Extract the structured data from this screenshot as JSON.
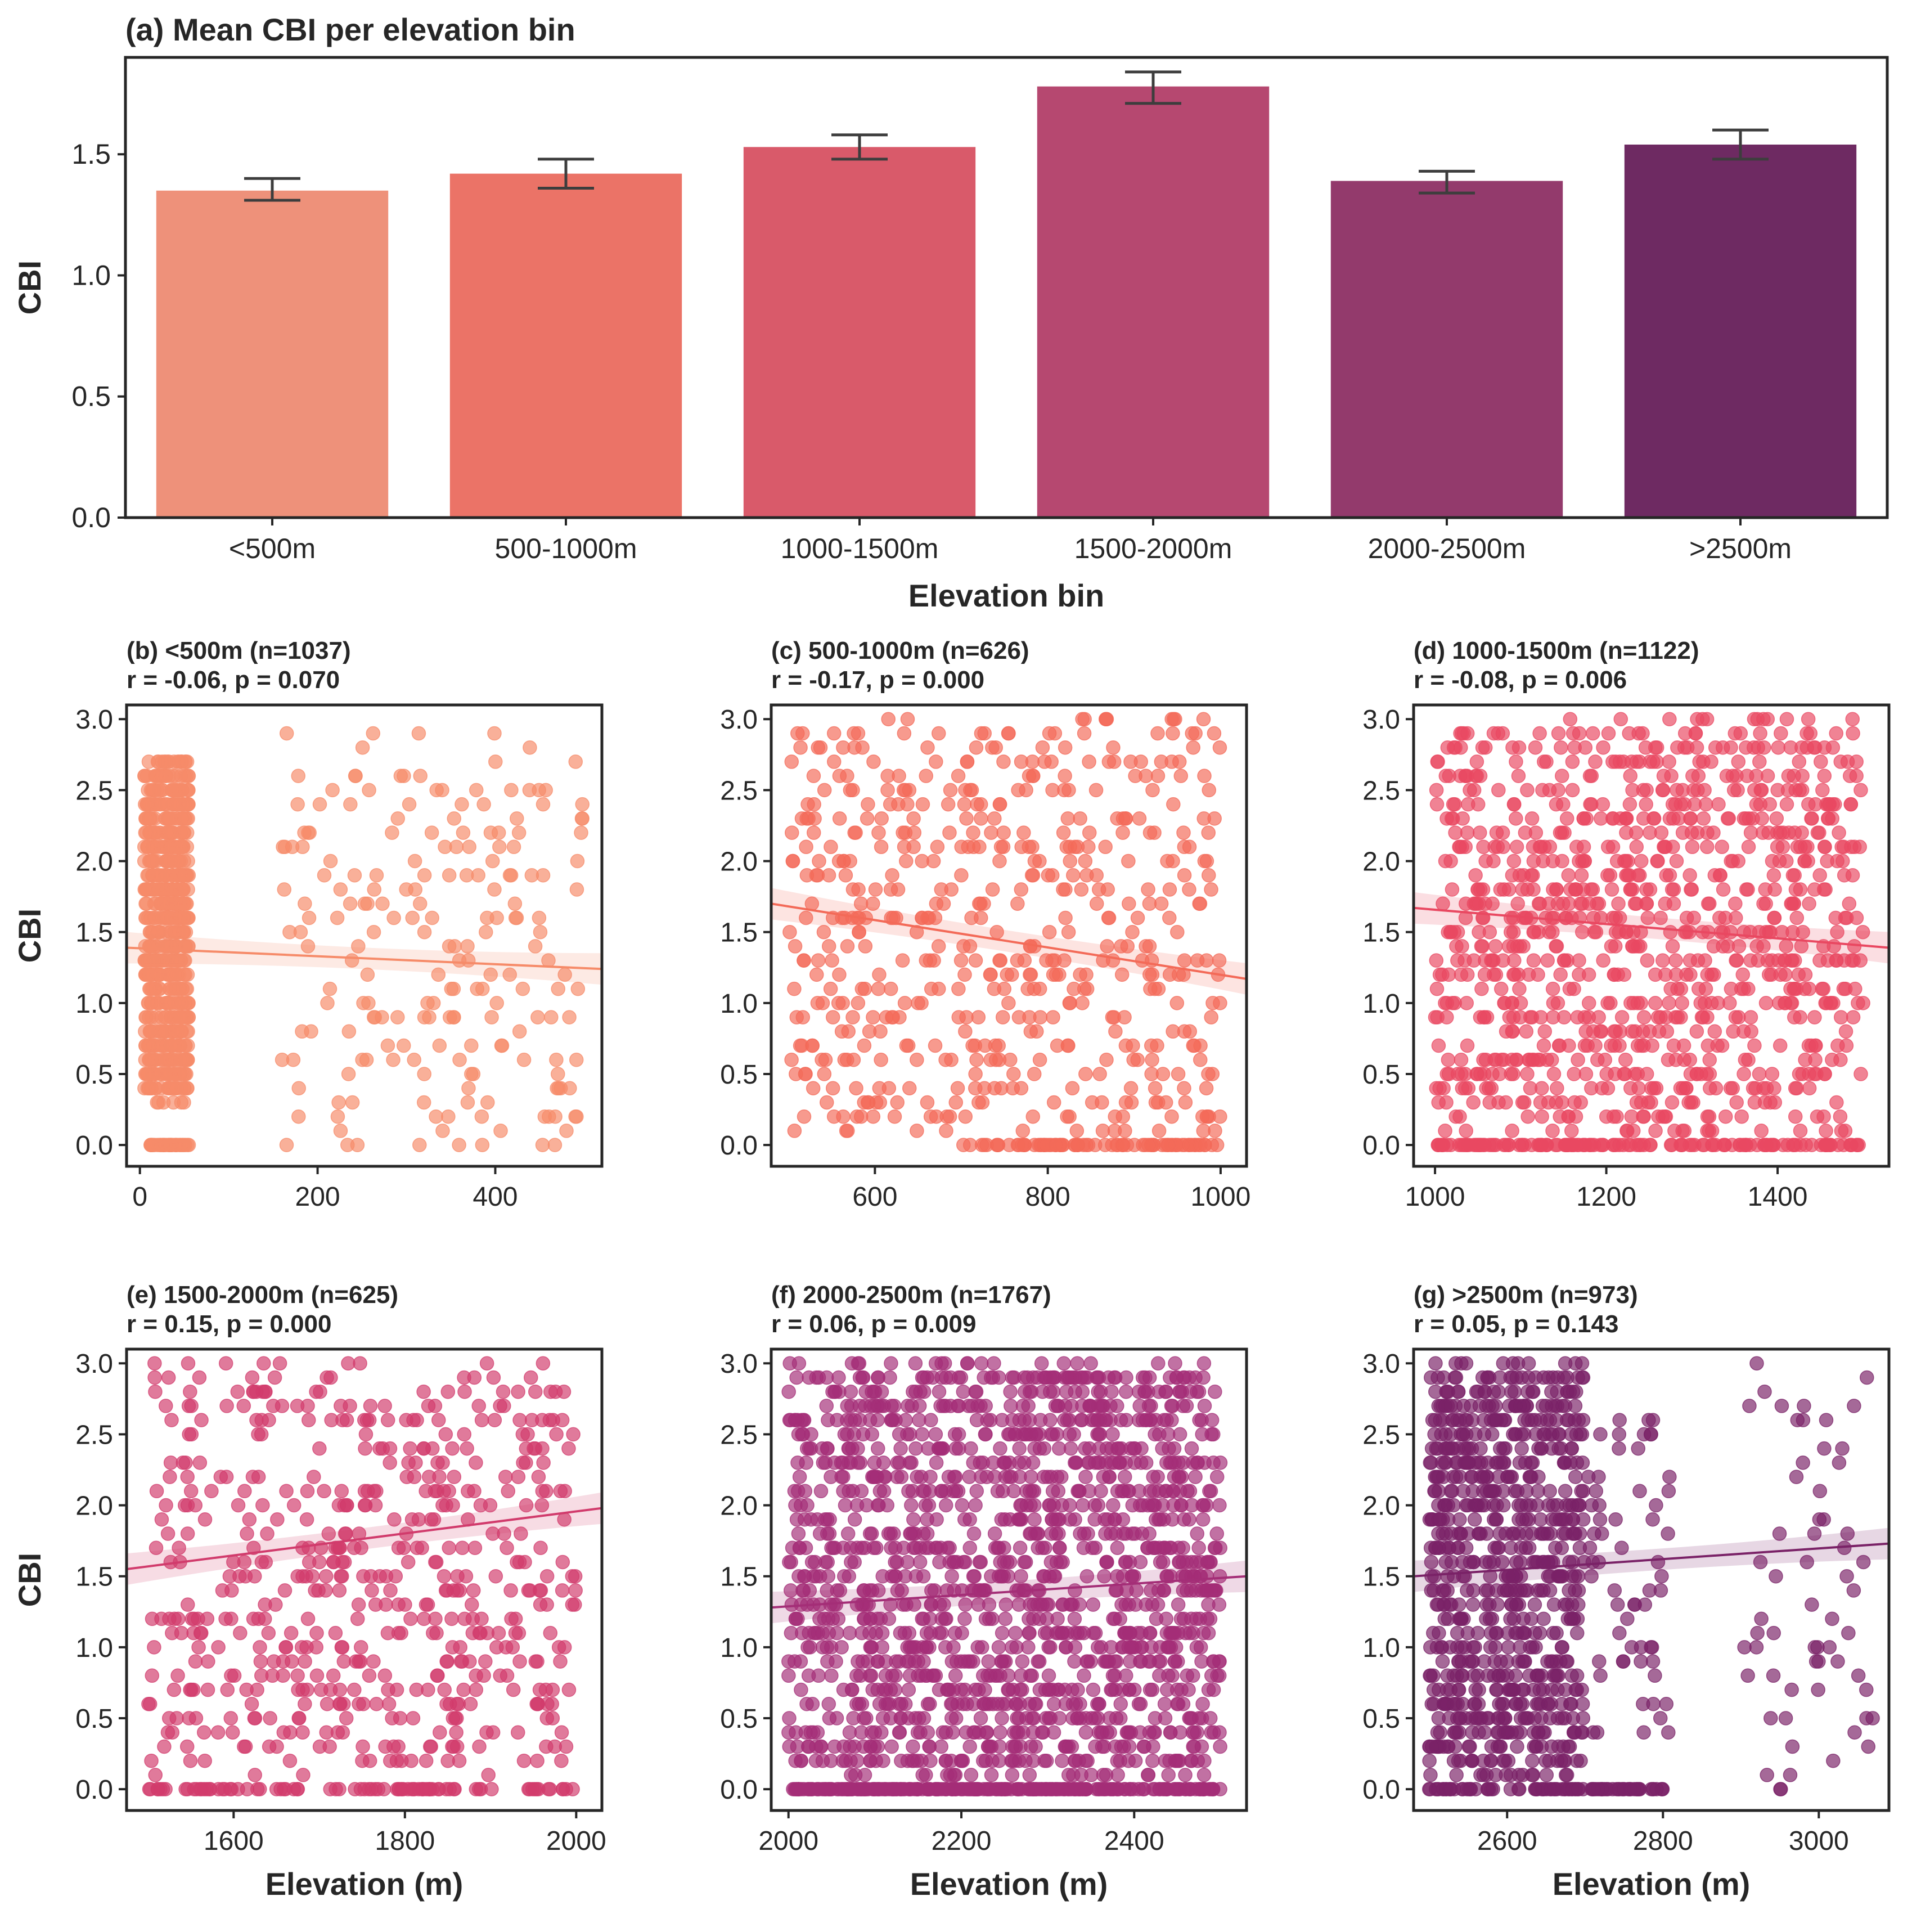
{
  "chart_data": [
    {
      "type": "bar",
      "title": "(a) Mean CBI per elevation bin",
      "xlabel": "Elevation bin",
      "ylabel": "CBI",
      "categories": [
        "<500m",
        "500-1000m",
        "1000-1500m",
        "1500-2000m",
        "2000-2500m",
        ">2500m"
      ],
      "values": [
        1.35,
        1.42,
        1.53,
        1.78,
        1.39,
        1.54
      ],
      "error_low": [
        1.31,
        1.36,
        1.48,
        1.71,
        1.34,
        1.48
      ],
      "error_high": [
        1.4,
        1.48,
        1.58,
        1.84,
        1.43,
        1.6
      ],
      "colors": [
        "#ee917a",
        "#eb7367",
        "#d95a6a",
        "#b64870",
        "#933a6c",
        "#6e2a62"
      ],
      "ylim": [
        0,
        1.9
      ],
      "yticks": [
        "0.0",
        "0.5",
        "1.0",
        "1.5"
      ]
    },
    {
      "type": "scatter",
      "title": "(b) <500m (n=1037)",
      "subtitle": "r = -0.06,  p = 0.070",
      "xlabel": "",
      "ylabel": "CBI",
      "color": "#f68b69",
      "xlim": [
        -15,
        520
      ],
      "ylim": [
        -0.15,
        3.1
      ],
      "xticks": [
        0,
        200,
        400
      ],
      "yticks": [
        0.0,
        0.5,
        1.0,
        1.5,
        2.0,
        2.5,
        3.0
      ],
      "regression": {
        "x": [
          -15,
          520
        ],
        "y": [
          1.39,
          1.24
        ]
      },
      "clusters": [
        {
          "x": [
            5,
            55
          ],
          "y": [
            0.3,
            2.7
          ],
          "n": 700
        },
        {
          "x": [
            10,
            55
          ],
          "y": [
            0.0,
            0.0
          ],
          "n": 45
        },
        {
          "x": [
            160,
            500
          ],
          "y": [
            0.0,
            2.9
          ],
          "n": 200
        }
      ]
    },
    {
      "type": "scatter",
      "title": "(c) 500-1000m (n=626)",
      "subtitle": "r = -0.17,  p = 0.000",
      "xlabel": "",
      "ylabel": "",
      "color": "#f36a58",
      "xlim": [
        480,
        1030
      ],
      "ylim": [
        -0.15,
        3.1
      ],
      "xticks": [
        600,
        800,
        1000
      ],
      "yticks": [
        0.0,
        0.5,
        1.0,
        1.5,
        2.0,
        2.5,
        3.0
      ],
      "regression": {
        "x": [
          480,
          1030
        ],
        "y": [
          1.7,
          1.17
        ]
      },
      "clusters": [
        {
          "x": [
            500,
            1000
          ],
          "y": [
            0.1,
            3.0
          ],
          "n": 540
        },
        {
          "x": [
            700,
            1000
          ],
          "y": [
            0.0,
            0.0
          ],
          "n": 80
        }
      ]
    },
    {
      "type": "scatter",
      "title": "(d) 1000-1500m (n=1122)",
      "subtitle": "r = -0.08,  p = 0.006",
      "xlabel": "",
      "ylabel": "",
      "color": "#e94861",
      "xlim": [
        975,
        1530
      ],
      "ylim": [
        -0.15,
        3.1
      ],
      "xticks": [
        1000,
        1200,
        1400
      ],
      "yticks": [
        0.0,
        0.5,
        1.0,
        1.5,
        2.0,
        2.5,
        3.0
      ],
      "regression": {
        "x": [
          975,
          1530
        ],
        "y": [
          1.67,
          1.39
        ]
      },
      "clusters": [
        {
          "x": [
            1000,
            1500
          ],
          "y": [
            0.1,
            3.0
          ],
          "n": 980
        },
        {
          "x": [
            1000,
            1500
          ],
          "y": [
            0.0,
            0.0
          ],
          "n": 140
        }
      ]
    },
    {
      "type": "scatter",
      "title": "(e) 1500-2000m (n=625)",
      "subtitle": "r = 0.15,  p = 0.000",
      "xlabel": "Elevation (m)",
      "ylabel": "CBI",
      "color": "#d13b6c",
      "xlim": [
        1475,
        2030
      ],
      "ylim": [
        -0.15,
        3.1
      ],
      "xticks": [
        1600,
        1800,
        2000
      ],
      "yticks": [
        0.0,
        0.5,
        1.0,
        1.5,
        2.0,
        2.5,
        3.0
      ],
      "regression": {
        "x": [
          1475,
          2030
        ],
        "y": [
          1.55,
          1.98
        ]
      },
      "clusters": [
        {
          "x": [
            1500,
            2000
          ],
          "y": [
            0.1,
            3.0
          ],
          "n": 540
        },
        {
          "x": [
            1500,
            2000
          ],
          "y": [
            0.0,
            0.0
          ],
          "n": 85
        }
      ]
    },
    {
      "type": "scatter",
      "title": "(f) 2000-2500m (n=1767)",
      "subtitle": "r = 0.06,  p = 0.009",
      "xlabel": "Elevation (m)",
      "ylabel": "",
      "color": "#a42e77",
      "xlim": [
        1980,
        2530
      ],
      "ylim": [
        -0.15,
        3.1
      ],
      "xticks": [
        2000,
        2200,
        2400
      ],
      "yticks": [
        0.0,
        0.5,
        1.0,
        1.5,
        2.0,
        2.5,
        3.0
      ],
      "regression": {
        "x": [
          1980,
          2530
        ],
        "y": [
          1.28,
          1.5
        ]
      },
      "clusters": [
        {
          "x": [
            2000,
            2500
          ],
          "y": [
            0.1,
            3.0
          ],
          "n": 1500
        },
        {
          "x": [
            2000,
            2500
          ],
          "y": [
            0.0,
            0.0
          ],
          "n": 260
        }
      ]
    },
    {
      "type": "scatter",
      "title": "(g) >2500m (n=973)",
      "subtitle": "r = 0.05,  p = 0.143",
      "xlabel": "Elevation (m)",
      "ylabel": "",
      "color": "#7a2267",
      "xlim": [
        2480,
        3090
      ],
      "ylim": [
        -0.15,
        3.1
      ],
      "xticks": [
        2600,
        2800,
        3000
      ],
      "yticks": [
        0.0,
        0.5,
        1.0,
        1.5,
        2.0,
        2.5,
        3.0
      ],
      "regression": {
        "x": [
          2480,
          3090
        ],
        "y": [
          1.5,
          1.73
        ]
      },
      "clusters": [
        {
          "x": [
            2500,
            2700
          ],
          "y": [
            0.1,
            3.0
          ],
          "n": 760
        },
        {
          "x": [
            2700,
            2810
          ],
          "y": [
            0.3,
            2.7
          ],
          "n": 60
        },
        {
          "x": [
            2500,
            2800
          ],
          "y": [
            0.0,
            0.0
          ],
          "n": 90
        },
        {
          "x": [
            2900,
            3070
          ],
          "y": [
            0.0,
            3.0
          ],
          "n": 60
        }
      ]
    }
  ]
}
